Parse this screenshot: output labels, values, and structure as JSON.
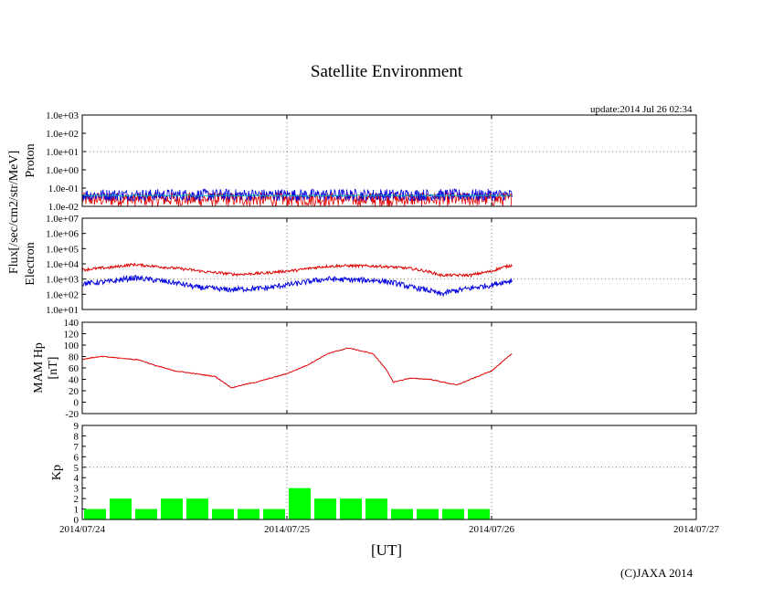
{
  "title": "Satellite Environment",
  "update_text": "update:2014 Jul 26 02:34",
  "xlabel": "[UT]",
  "credit": "(C)JAXA 2014",
  "flux_label": "Flux[/sec/cm2/str/MeV]",
  "chart_data": [
    {
      "type": "line",
      "name": "proton",
      "ylabel": "Proton",
      "yscale": "log",
      "ylim": [
        0.01,
        1000
      ],
      "ytick_labels": [
        "1.0e-02",
        "1.0e-01",
        "1.0e+00",
        "1.0e+01",
        "1.0e+02",
        "1.0e+03"
      ],
      "dashed_at": [
        10
      ],
      "colors": [
        "#e00000",
        "#0000e0",
        "#00c0a0"
      ],
      "series": [
        {
          "color": "#e00000",
          "approx_range": [
            0.01,
            0.06
          ]
        },
        {
          "color": "#0000e0",
          "approx_range": [
            0.02,
            0.09
          ]
        },
        {
          "color": "#00c0a0",
          "approx_range": [
            0.03,
            0.05
          ]
        }
      ]
    },
    {
      "type": "line",
      "name": "electron",
      "ylabel": "Electron",
      "yscale": "log",
      "ylim": [
        10,
        10000000
      ],
      "ytick_labels": [
        "1.0e+01",
        "1.0e+02",
        "1.0e+03",
        "1.0e+04",
        "1.0e+05",
        "1.0e+06",
        "1.0e+07"
      ],
      "dashed_at": [
        1000
      ],
      "series": [
        {
          "color": "#e00000",
          "x": [
            0,
            0.15,
            0.25,
            0.4,
            0.6,
            0.75,
            0.9,
            1.05,
            1.2,
            1.3,
            1.45,
            1.6,
            1.75,
            1.9,
            2.0,
            2.1
          ],
          "y": [
            4000,
            6000,
            9000,
            6000,
            3000,
            2000,
            2500,
            3800,
            7000,
            7500,
            7000,
            5000,
            1800,
            1800,
            3200,
            8000
          ]
        },
        {
          "color": "#0000e0",
          "x": [
            0,
            0.15,
            0.25,
            0.4,
            0.55,
            0.7,
            0.9,
            1.05,
            1.2,
            1.3,
            1.45,
            1.6,
            1.75,
            1.9,
            2.0,
            2.1
          ],
          "y": [
            500,
            700,
            1200,
            700,
            300,
            200,
            250,
            500,
            1000,
            900,
            800,
            300,
            100,
            250,
            400,
            800
          ]
        }
      ]
    },
    {
      "type": "line",
      "name": "mam_hp",
      "ylabel": "MAM Hp",
      "ylabel2": "[nT]",
      "ylim": [
        -20,
        140
      ],
      "ytick_labels": [
        "-20",
        "0",
        "20",
        "40",
        "60",
        "80",
        "100",
        "120",
        "140"
      ],
      "series": [
        {
          "color": "#e00000",
          "x": [
            0,
            0.05,
            0.1,
            0.28,
            0.35,
            0.45,
            0.55,
            0.65,
            0.73,
            0.78,
            0.85,
            1.0,
            1.1,
            1.2,
            1.3,
            1.42,
            1.48,
            1.52,
            1.6,
            1.7,
            1.83,
            2.0,
            2.1
          ],
          "y": [
            75,
            78,
            80,
            74,
            65,
            55,
            50,
            45,
            25,
            30,
            35,
            50,
            65,
            85,
            95,
            85,
            60,
            35,
            42,
            40,
            30,
            55,
            85
          ]
        }
      ]
    },
    {
      "type": "bar",
      "name": "kp",
      "ylabel": "Kp",
      "ylim": [
        0,
        9
      ],
      "ytick_labels": [
        "0",
        "1",
        "2",
        "3",
        "4",
        "5",
        "6",
        "7",
        "8",
        "9"
      ],
      "dashed_at": [
        5
      ],
      "bar_color": "#00ff00",
      "bin_days": 0.125,
      "values": [
        1,
        2,
        1,
        2,
        2,
        1,
        1,
        1,
        3,
        2,
        2,
        2,
        1,
        1,
        1,
        1
      ]
    }
  ],
  "x_axis": {
    "xlim_days": [
      0,
      3
    ],
    "tick_labels": [
      "2014/07/24",
      "2014/07/25",
      "2014/07/26",
      "2014/07/27"
    ],
    "dashed_at_days": [
      1,
      2
    ]
  }
}
